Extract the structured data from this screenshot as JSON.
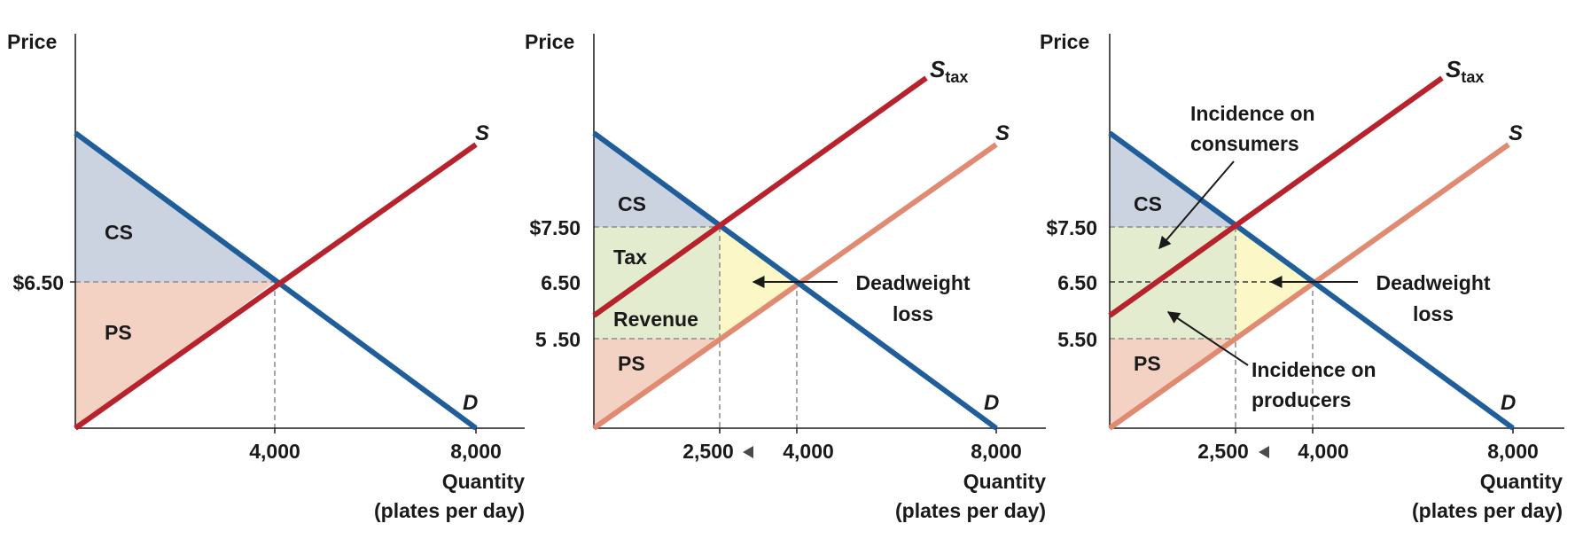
{
  "colors": {
    "demand": "#1f5e9b",
    "supply": "#b8222d",
    "supply_original_after_tax": "#e08a72",
    "cs_fill": "#ccd3e0",
    "ps_fill": "#f3d2c4",
    "tax_revenue_fill": "#e4eccf",
    "deadweight_fill": "#fbf7c6",
    "guide_line": "#8c8c8c",
    "text": "#1a1a1a"
  },
  "chart_data": [
    {
      "type": "line",
      "ylabel": "Price",
      "xlabel_line1": "Quantity",
      "xlabel_line2": "(plates per day)",
      "x_ticks": [
        "4,000",
        "8,000"
      ],
      "y_ticks": [
        "$6.50"
      ],
      "xlim": [
        0,
        9000
      ],
      "ylim": [
        3.9,
        9.85
      ],
      "series": [
        {
          "name": "D",
          "points": [
            [
              0,
              9.0
            ],
            [
              8000,
              4.0
            ]
          ]
        },
        {
          "name": "S",
          "points": [
            [
              0,
              4.0
            ],
            [
              8000,
              8.85
            ]
          ]
        }
      ],
      "equilibrium": {
        "quantity": 4000,
        "price": 6.5
      },
      "regions": [
        {
          "label": "CS",
          "desc": "consumer surplus"
        },
        {
          "label": "PS",
          "desc": "producer surplus"
        }
      ]
    },
    {
      "type": "line",
      "ylabel": "Price",
      "xlabel_line1": "Quantity",
      "xlabel_line2": "(plates per day)",
      "x_ticks": [
        "2,500",
        "4,000",
        "8,000"
      ],
      "y_ticks": [
        "$7.50",
        "6.50",
        "5 .50"
      ],
      "xlim": [
        0,
        9000
      ],
      "ylim": [
        3.9,
        9.85
      ],
      "series": [
        {
          "name": "D",
          "points": [
            [
              0,
              9.0
            ],
            [
              8000,
              4.0
            ]
          ]
        },
        {
          "name": "S",
          "subscript": "",
          "points": [
            [
              0,
              4.0
            ],
            [
              8000,
              8.85
            ]
          ]
        },
        {
          "name": "S",
          "subscript": "tax",
          "points": [
            [
              0,
              5.95
            ],
            [
              6600,
              9.65
            ]
          ]
        }
      ],
      "tax_wedge": {
        "quantity_before": 4000,
        "quantity_after": 2500,
        "consumer_price": 7.5,
        "original_price": 6.5,
        "producer_price": 5.5
      },
      "regions": [
        {
          "label": "CS"
        },
        {
          "label": "Tax"
        },
        {
          "label": "Revenue"
        },
        {
          "label": "PS"
        }
      ],
      "annotations": [
        {
          "line1": "Deadweight",
          "line2": "loss"
        }
      ]
    },
    {
      "type": "line",
      "ylabel": "Price",
      "xlabel_line1": "Quantity",
      "xlabel_line2": "(plates per day)",
      "x_ticks": [
        "2,500",
        "4,000",
        "8,000"
      ],
      "y_ticks": [
        "$7.50",
        "6.50",
        "5.50"
      ],
      "xlim": [
        0,
        9000
      ],
      "ylim": [
        3.9,
        9.85
      ],
      "series": [
        {
          "name": "D",
          "points": [
            [
              0,
              9.0
            ],
            [
              8000,
              4.0
            ]
          ]
        },
        {
          "name": "S",
          "subscript": "",
          "points": [
            [
              0,
              4.0
            ],
            [
              8000,
              8.85
            ]
          ]
        },
        {
          "name": "S",
          "subscript": "tax",
          "points": [
            [
              0,
              5.95
            ],
            [
              6600,
              9.65
            ]
          ]
        }
      ],
      "tax_wedge": {
        "quantity_before": 4000,
        "quantity_after": 2500,
        "consumer_price": 7.5,
        "original_price": 6.5,
        "producer_price": 5.5
      },
      "regions": [
        {
          "label": "CS"
        },
        {
          "label": "PS"
        }
      ],
      "annotations": [
        {
          "line1": "Incidence on",
          "line2": "consumers"
        },
        {
          "line1": "Deadweight",
          "line2": "loss"
        },
        {
          "line1": "Incidence on",
          "line2": "producers"
        }
      ]
    }
  ]
}
